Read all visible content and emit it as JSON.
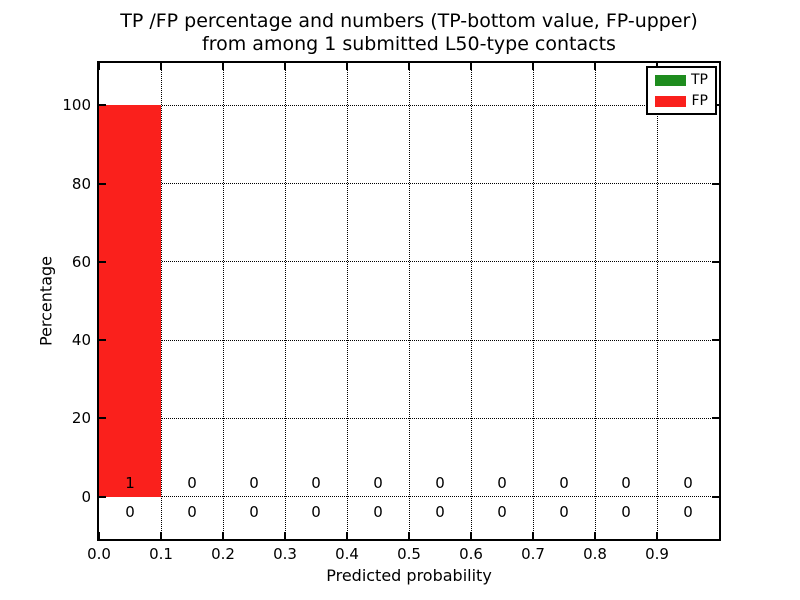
{
  "chart_data": {
    "type": "bar",
    "title_line1": "TP /FP percentage and numbers (TP-bottom value, FP-upper)",
    "title_line2": "from among 1 submitted L50-type contacts",
    "title": "TP /FP percentage and numbers (TP-bottom value, FP-upper)\nfrom among 1 submitted L50-type contacts",
    "xlabel": "Predicted probability",
    "ylabel": "Percentage",
    "xlim": [
      0.0,
      1.0
    ],
    "ylim": [
      -10.8,
      110.8
    ],
    "xtick_values": [
      0.0,
      0.1,
      0.2,
      0.3,
      0.4,
      0.5,
      0.6,
      0.7,
      0.8,
      0.9
    ],
    "xtick_labels": [
      "0.0",
      "0.1",
      "0.2",
      "0.3",
      "0.4",
      "0.5",
      "0.6",
      "0.7",
      "0.8",
      "0.9"
    ],
    "ytick_values": [
      0,
      20,
      40,
      60,
      80,
      100
    ],
    "ytick_labels": [
      "0",
      "20",
      "40",
      "60",
      "80",
      "100"
    ],
    "bin_edges": [
      0.0,
      0.1,
      0.2,
      0.3,
      0.4,
      0.5,
      0.6,
      0.7,
      0.8,
      0.9,
      1.0
    ],
    "grid": true,
    "grid_style": "dotted",
    "stacked": true,
    "legend": {
      "position": "upper right",
      "entries": [
        "TP",
        "FP"
      ]
    },
    "series": [
      {
        "name": "TP",
        "color": "#1e8c1e",
        "count_row": "lower",
        "percent": [
          0,
          0,
          0,
          0,
          0,
          0,
          0,
          0,
          0,
          0
        ],
        "counts": [
          0,
          0,
          0,
          0,
          0,
          0,
          0,
          0,
          0,
          0
        ]
      },
      {
        "name": "FP",
        "color": "#fa201c",
        "count_row": "upper",
        "percent": [
          100,
          0,
          0,
          0,
          0,
          0,
          0,
          0,
          0,
          0
        ],
        "counts": [
          1,
          0,
          0,
          0,
          0,
          0,
          0,
          0,
          0,
          0
        ]
      }
    ]
  }
}
